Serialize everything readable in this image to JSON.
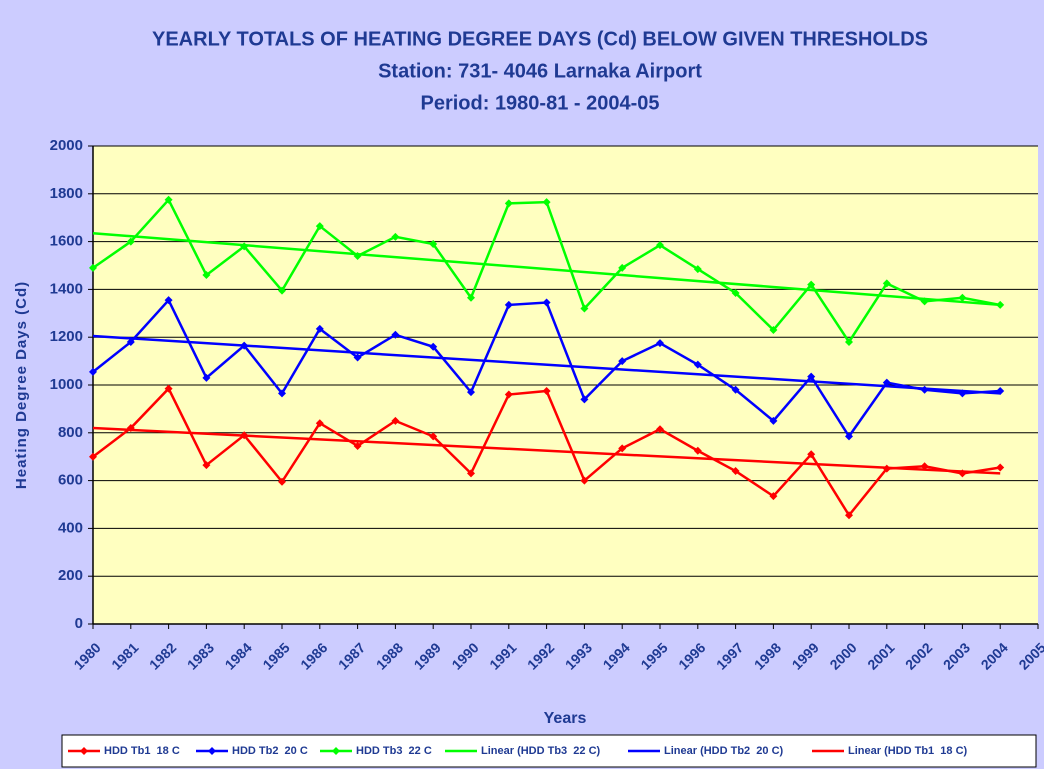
{
  "chart_data": {
    "type": "line",
    "title": "YEARLY  TOTALS  OF  HEATING DEGREE  DAYS (Cd)  BELOW  GIVEN THRESHOLDS",
    "subtitle": "Station: 731- 4046 Larnaka Airport",
    "subtitle2": "Period: 1980-81  -  2004-05",
    "xlabel": "Years",
    "ylabel": "Heating Degree Days (Cd)",
    "x": [
      1980,
      1981,
      1982,
      1983,
      1984,
      1985,
      1986,
      1987,
      1988,
      1989,
      1990,
      1991,
      1992,
      1993,
      1994,
      1995,
      1996,
      1997,
      1998,
      1999,
      2000,
      2001,
      2002,
      2003,
      2004
    ],
    "xlim": [
      1980,
      2005
    ],
    "xticks": [
      1980,
      1981,
      1982,
      1983,
      1984,
      1985,
      1986,
      1987,
      1988,
      1989,
      1990,
      1991,
      1992,
      1993,
      1994,
      1995,
      1996,
      1997,
      1998,
      1999,
      2000,
      2001,
      2002,
      2003,
      2004,
      2005
    ],
    "ylim": [
      0,
      2000
    ],
    "yticks": [
      0,
      200,
      400,
      600,
      800,
      1000,
      1200,
      1400,
      1600,
      1800,
      2000
    ],
    "grid": true,
    "legend": "bottom",
    "series": [
      {
        "name": "HDD Tb1  18 C",
        "color": "#ff0000",
        "markers": true,
        "values": [
          700,
          820,
          985,
          665,
          790,
          595,
          840,
          745,
          850,
          785,
          630,
          960,
          975,
          600,
          735,
          815,
          725,
          640,
          535,
          710,
          455,
          650,
          660,
          630,
          655
        ]
      },
      {
        "name": "HDD Tb2  20 C",
        "color": "#0000ff",
        "markers": true,
        "values": [
          1055,
          1180,
          1355,
          1030,
          1165,
          965,
          1235,
          1115,
          1210,
          1160,
          970,
          1335,
          1345,
          940,
          1100,
          1175,
          1085,
          980,
          850,
          1035,
          785,
          1010,
          980,
          965,
          975
        ]
      },
      {
        "name": "HDD Tb3  22 C",
        "color": "#00ff00",
        "markers": true,
        "values": [
          1490,
          1600,
          1775,
          1460,
          1580,
          1395,
          1665,
          1540,
          1620,
          1590,
          1365,
          1760,
          1765,
          1320,
          1490,
          1585,
          1485,
          1385,
          1230,
          1420,
          1180,
          1425,
          1350,
          1365,
          1335
        ]
      },
      {
        "name": "Linear (HDD Tb3  22 C)",
        "color": "#00ff00",
        "markers": false,
        "x": [
          1980,
          2004
        ],
        "values": [
          1635,
          1335
        ]
      },
      {
        "name": "Linear (HDD Tb2  20 C)",
        "color": "#0000ff",
        "markers": false,
        "x": [
          1980,
          2004
        ],
        "values": [
          1205,
          965
        ]
      },
      {
        "name": "Linear (HDD Tb1  18 C)",
        "color": "#ff0000",
        "markers": false,
        "x": [
          1980,
          2004
        ],
        "values": [
          820,
          630
        ]
      }
    ]
  }
}
